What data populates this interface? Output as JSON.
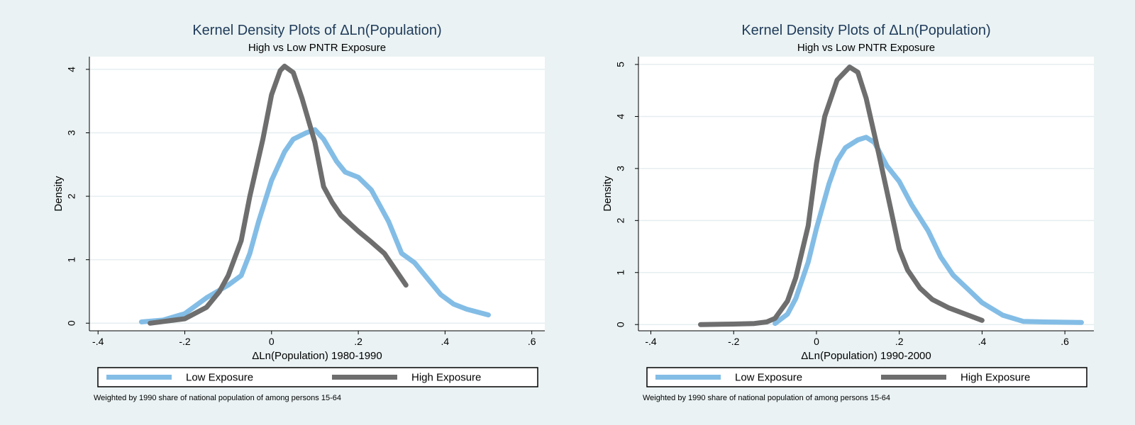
{
  "colors": {
    "low": "#83bde6",
    "high": "#6e6e6e",
    "background": "#eaf2f3",
    "plot": "#ffffff",
    "grid": "#e6eeef"
  },
  "chart_data": [
    {
      "type": "line",
      "title": "Kernel Density Plots of ΔLn(Population)",
      "subtitle": "High vs Low PNTR Exposure",
      "xlabel": "ΔLn(Population) 1980-1990",
      "ylabel": "Density",
      "xlim": [
        -0.42,
        0.63
      ],
      "ylim": [
        -0.12,
        4.2
      ],
      "xticks": [
        -0.4,
        -0.2,
        0,
        0.2,
        0.4,
        0.6
      ],
      "xtick_labels": [
        "-.4",
        "-.2",
        "0",
        ".2",
        ".4",
        ".6"
      ],
      "yticks": [
        0,
        1,
        2,
        3,
        4
      ],
      "ytick_labels": [
        "0",
        "1",
        "2",
        "3",
        "4"
      ],
      "grid": true,
      "legend": "bottom",
      "note": "Weighted by 1990 share of national population of among persons 15-64",
      "series": [
        {
          "name": "Low Exposure",
          "color": "#83bde6",
          "x": [
            -0.3,
            -0.25,
            -0.2,
            -0.15,
            -0.1,
            -0.07,
            -0.05,
            -0.03,
            0.0,
            0.03,
            0.05,
            0.08,
            0.1,
            0.12,
            0.15,
            0.17,
            0.2,
            0.23,
            0.25,
            0.27,
            0.3,
            0.33,
            0.36,
            0.39,
            0.42,
            0.45,
            0.5
          ],
          "y": [
            0.02,
            0.05,
            0.15,
            0.4,
            0.6,
            0.75,
            1.1,
            1.6,
            2.25,
            2.7,
            2.9,
            3.0,
            3.05,
            2.9,
            2.55,
            2.38,
            2.3,
            2.1,
            1.85,
            1.6,
            1.1,
            0.95,
            0.7,
            0.45,
            0.3,
            0.22,
            0.13
          ]
        },
        {
          "name": "High Exposure",
          "color": "#6e6e6e",
          "x": [
            -0.28,
            -0.2,
            -0.15,
            -0.12,
            -0.1,
            -0.07,
            -0.05,
            -0.02,
            0.0,
            0.02,
            0.03,
            0.05,
            0.07,
            0.1,
            0.12,
            0.14,
            0.16,
            0.2,
            0.23,
            0.26,
            0.29,
            0.31
          ],
          "y": [
            0.0,
            0.07,
            0.25,
            0.5,
            0.75,
            1.3,
            2.0,
            2.9,
            3.6,
            3.98,
            4.05,
            3.95,
            3.55,
            2.85,
            2.15,
            1.9,
            1.7,
            1.45,
            1.28,
            1.1,
            0.8,
            0.6
          ]
        }
      ]
    },
    {
      "type": "line",
      "title": "Kernel Density Plots of ΔLn(Population)",
      "subtitle": "High vs Low PNTR Exposure",
      "xlabel": "ΔLn(Population) 1990-2000",
      "ylabel": "Density",
      "xlim": [
        -0.43,
        0.67
      ],
      "ylim": [
        -0.12,
        5.15
      ],
      "xticks": [
        -0.4,
        -0.2,
        0,
        0.2,
        0.4,
        0.6
      ],
      "xtick_labels": [
        "-.4",
        "-.2",
        "0",
        ".2",
        ".4",
        ".6"
      ],
      "yticks": [
        0,
        1,
        2,
        3,
        4,
        5
      ],
      "ytick_labels": [
        "0",
        "1",
        "2",
        "3",
        "4",
        "5"
      ],
      "grid": true,
      "legend": "bottom",
      "note": "Weighted by 1990 share of national population of among persons 15-64",
      "series": [
        {
          "name": "Low Exposure",
          "color": "#83bde6",
          "x": [
            -0.1,
            -0.07,
            -0.05,
            -0.02,
            0.0,
            0.03,
            0.05,
            0.07,
            0.1,
            0.12,
            0.14,
            0.17,
            0.2,
            0.23,
            0.27,
            0.3,
            0.33,
            0.37,
            0.4,
            0.45,
            0.5,
            0.55,
            0.64
          ],
          "y": [
            0.02,
            0.2,
            0.5,
            1.2,
            1.85,
            2.7,
            3.15,
            3.4,
            3.55,
            3.6,
            3.5,
            3.05,
            2.75,
            2.3,
            1.8,
            1.3,
            0.95,
            0.65,
            0.42,
            0.18,
            0.06,
            0.05,
            0.04
          ]
        },
        {
          "name": "High Exposure",
          "color": "#6e6e6e",
          "x": [
            -0.28,
            -0.2,
            -0.15,
            -0.12,
            -0.1,
            -0.07,
            -0.05,
            -0.02,
            0.0,
            0.02,
            0.05,
            0.08,
            0.1,
            0.12,
            0.15,
            0.18,
            0.2,
            0.22,
            0.25,
            0.28,
            0.32,
            0.36,
            0.4
          ],
          "y": [
            0.0,
            0.01,
            0.02,
            0.05,
            0.12,
            0.45,
            0.9,
            1.9,
            3.1,
            4.0,
            4.7,
            4.95,
            4.85,
            4.35,
            3.3,
            2.2,
            1.45,
            1.05,
            0.7,
            0.48,
            0.32,
            0.2,
            0.08
          ]
        }
      ]
    }
  ],
  "legend_labels": {
    "low": "Low Exposure",
    "high": "High Exposure"
  }
}
